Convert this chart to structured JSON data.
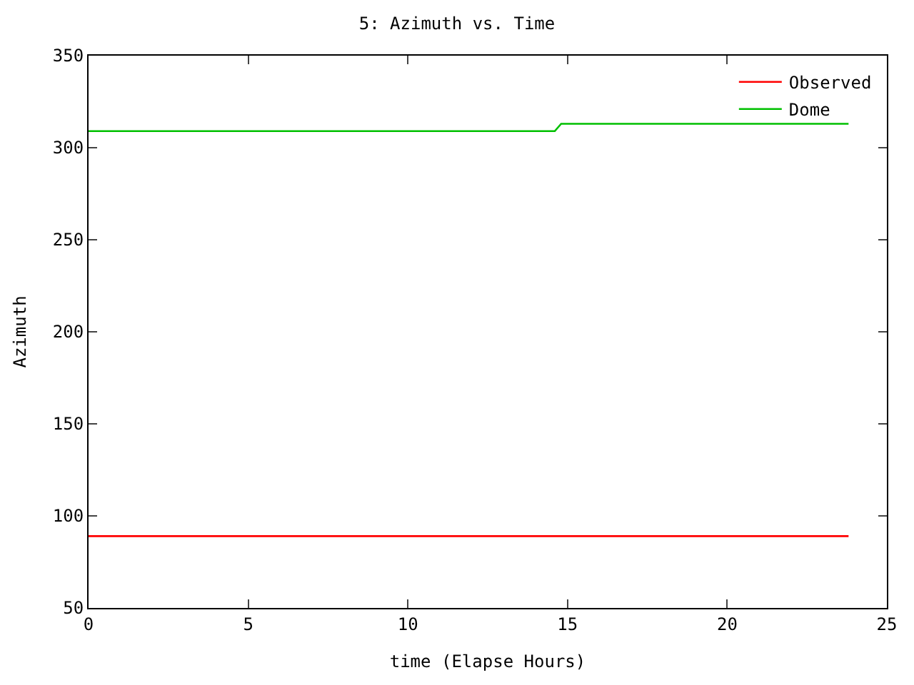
{
  "chart_data": {
    "type": "line",
    "title": "5: Azimuth vs. Time",
    "xlabel": "time (Elapse Hours)",
    "ylabel": "Azimuth",
    "xlim": [
      0,
      25
    ],
    "xticks": [
      0,
      5,
      10,
      15,
      20,
      25
    ],
    "ylim": [
      50,
      350
    ],
    "yticks": [
      50,
      100,
      150,
      200,
      250,
      300,
      350
    ],
    "series": [
      {
        "name": "Observed",
        "color": "#ff0000",
        "x": [
          0,
          23.8
        ],
        "values": [
          89,
          89
        ]
      },
      {
        "name": "Dome",
        "color": "#00c000",
        "x": [
          0,
          14.6,
          14.8,
          23.8
        ],
        "values": [
          309,
          309,
          313,
          313
        ]
      }
    ],
    "legend": "top right",
    "line_style": "solid",
    "marker": "none"
  }
}
